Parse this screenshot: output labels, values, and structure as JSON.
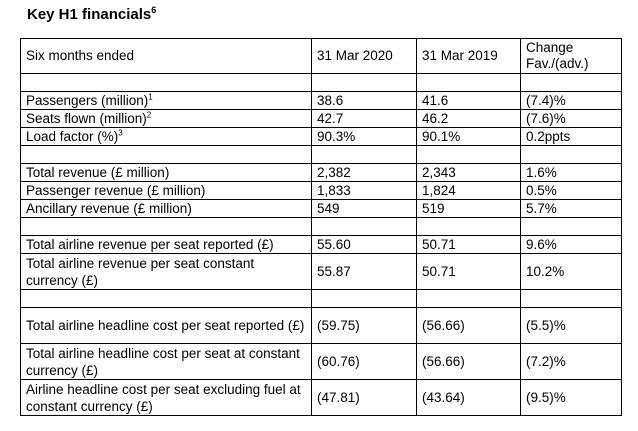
{
  "title": "Key H1 financials",
  "title_sup": "6",
  "header": {
    "label": "Six months ended",
    "col1": "31 Mar 2020",
    "col2": "31 Mar 2019",
    "col3_line1": "Change",
    "col3_line2": "Fav./(adv.)"
  },
  "rows": [
    {
      "type": "blank"
    },
    {
      "type": "s",
      "label": "Passengers (million)",
      "sup": "1",
      "v1": "38.6",
      "v2": "41.6",
      "chg": "(7.4)%"
    },
    {
      "type": "s",
      "label": "Seats flown (million)",
      "sup": "2",
      "v1": "42.7",
      "v2": "46.2",
      "chg": "(7.6)%"
    },
    {
      "type": "s",
      "label": "Load factor (%)",
      "sup": "3",
      "v1": "90.3%",
      "v2": "90.1%",
      "chg": "0.2ppts"
    },
    {
      "type": "blank"
    },
    {
      "type": "s",
      "label": "Total revenue (£ million)",
      "v1": "2,382",
      "v2": "2,343",
      "chg": "1.6%"
    },
    {
      "type": "s",
      "label": "Passenger revenue (£ million)",
      "v1": "1,833",
      "v2": "1,824",
      "chg": "0.5%"
    },
    {
      "type": "s",
      "label": "Ancillary revenue (£ million)",
      "v1": "549",
      "v2": "519",
      "chg": "5.7%"
    },
    {
      "type": "blank"
    },
    {
      "type": "s",
      "label": "Total airline revenue per seat reported (£)",
      "v1": "55.60",
      "v2": "50.71",
      "chg": "9.6%"
    },
    {
      "type": "d",
      "label": "Total airline revenue per seat constant currency (£)",
      "v1": "55.87",
      "v2": "50.71",
      "chg": "10.2%"
    },
    {
      "type": "blank"
    },
    {
      "type": "d",
      "label": "Total airline headline cost per seat reported (£)",
      "v1": "(59.75)",
      "v2": "(56.66)",
      "chg": "(5.5)%"
    },
    {
      "type": "d",
      "label": "Total airline headline cost per seat at constant currency (£)",
      "v1": "(60.76)",
      "v2": "(56.66)",
      "chg": "(7.2)%"
    },
    {
      "type": "d",
      "label": "Airline headline cost per seat excluding fuel at constant currency (£)",
      "v1": "(47.81)",
      "v2": "(43.64)",
      "chg": "(9.5)%"
    }
  ]
}
